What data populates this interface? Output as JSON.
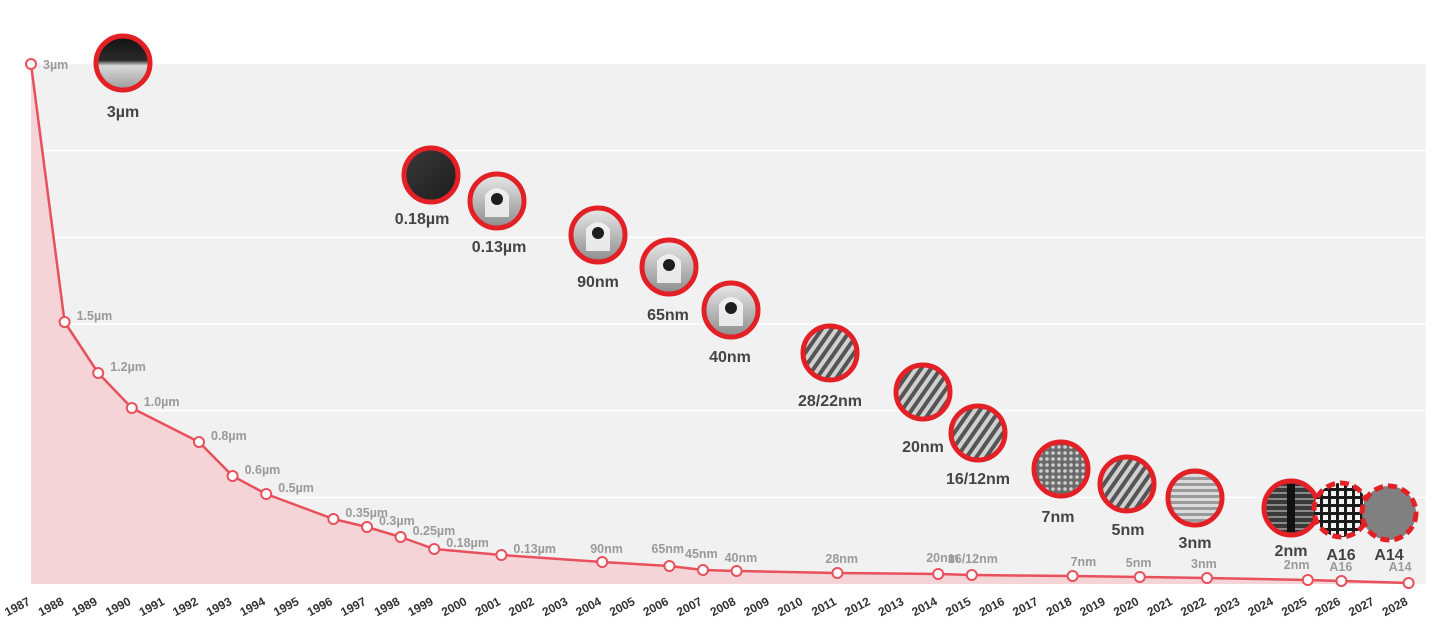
{
  "chart_data": {
    "type": "area",
    "title": "",
    "xlabel": "",
    "ylabel": "",
    "years": [
      "1987",
      "1988",
      "1989",
      "1990",
      "1991",
      "1992",
      "1993",
      "1994",
      "1995",
      "1996",
      "1997",
      "1998",
      "1999",
      "2000",
      "2001",
      "2002",
      "2003",
      "2004",
      "2005",
      "2006",
      "2007",
      "2008",
      "2009",
      "2010",
      "2011",
      "2012",
      "2013",
      "2014",
      "2015",
      "2016",
      "2017",
      "2018",
      "2019",
      "2020",
      "2021",
      "2022",
      "2023",
      "2024",
      "2025",
      "2026",
      "2027",
      "2028"
    ],
    "ylim": [
      0,
      3
    ],
    "grid": true,
    "accent_color": "#e8505b",
    "ring_color": "#e32026",
    "points": [
      {
        "year": 1987,
        "value": 3.0,
        "label": "3µm"
      },
      {
        "year": 1988,
        "value": 1.5,
        "label": "1.5µm"
      },
      {
        "year": 1989,
        "value": 1.2,
        "label": "1.2µm"
      },
      {
        "year": 1990,
        "value": 1.0,
        "label": "1.0µm"
      },
      {
        "year": 1992,
        "value": 0.8,
        "label": "0.8µm"
      },
      {
        "year": 1993,
        "value": 0.6,
        "label": "0.6µm"
      },
      {
        "year": 1994,
        "value": 0.5,
        "label": "0.5µm"
      },
      {
        "year": 1996,
        "value": 0.35,
        "label": "0.35µm"
      },
      {
        "year": 1997,
        "value": 0.3,
        "label": "0.3µm"
      },
      {
        "year": 1998,
        "value": 0.25,
        "label": "0.25µm"
      },
      {
        "year": 1999,
        "value": 0.18,
        "label": "0.18µm"
      },
      {
        "year": 2001,
        "value": 0.13,
        "label": "0.13µm"
      },
      {
        "year": 2004,
        "value": 0.09,
        "label": "90nm"
      },
      {
        "year": 2006,
        "value": 0.065,
        "label": "65nm"
      },
      {
        "year": 2007,
        "value": 0.045,
        "label": "45nm"
      },
      {
        "year": 2008,
        "value": 0.04,
        "label": "40nm"
      },
      {
        "year": 2011,
        "value": 0.028,
        "label": "28nm"
      },
      {
        "year": 2014,
        "value": 0.02,
        "label": "20nm"
      },
      {
        "year": 2015,
        "value": 0.016,
        "label": "16/12nm"
      },
      {
        "year": 2018,
        "value": 0.007,
        "label": "7nm"
      },
      {
        "year": 2020,
        "value": 0.005,
        "label": "5nm"
      },
      {
        "year": 2022,
        "value": 0.003,
        "label": "3nm"
      },
      {
        "year": 2025,
        "value": 0.002,
        "label": "2nm"
      },
      {
        "year": 2026,
        "value": 0.0016,
        "label": "A16"
      },
      {
        "year": 2028,
        "value": 0.0014,
        "label": "A14"
      }
    ],
    "badges": [
      {
        "label": "3µm",
        "pattern": "film",
        "dashed": false
      },
      {
        "label": "0.18µm",
        "pattern": "dark",
        "dashed": false
      },
      {
        "label": "0.13µm",
        "pattern": "gate",
        "dashed": false
      },
      {
        "label": "90nm",
        "pattern": "gate",
        "dashed": false
      },
      {
        "label": "65nm",
        "pattern": "gate",
        "dashed": false
      },
      {
        "label": "40nm",
        "pattern": "gate",
        "dashed": false
      },
      {
        "label": "28/22nm",
        "pattern": "fins",
        "dashed": false
      },
      {
        "label": "20nm",
        "pattern": "fins",
        "dashed": false
      },
      {
        "label": "16/12nm",
        "pattern": "fins",
        "dashed": false
      },
      {
        "label": "7nm",
        "pattern": "mesh",
        "dashed": false
      },
      {
        "label": "5nm",
        "pattern": "fins",
        "dashed": false
      },
      {
        "label": "3nm",
        "pattern": "stripes",
        "dashed": false
      },
      {
        "label": "2nm",
        "pattern": "nanosheet",
        "dashed": false
      },
      {
        "label": "A16",
        "pattern": "grid",
        "dashed": true
      },
      {
        "label": "A14",
        "pattern": "solid",
        "dashed": true
      }
    ]
  }
}
